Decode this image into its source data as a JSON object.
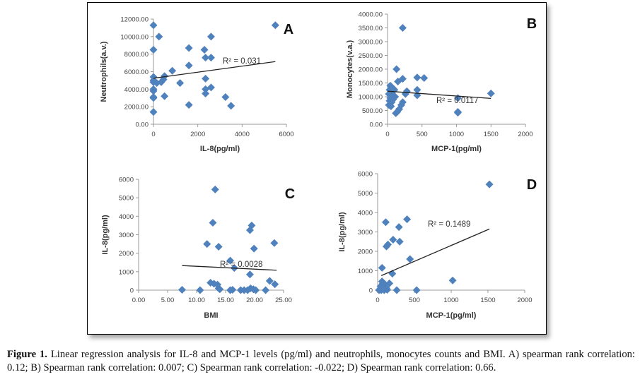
{
  "caption": {
    "label": "Figure 1.",
    "text": " Linear regression analysis for IL-8 and MCP-1 levels (pg/ml) and neutrophils, monocytes counts and BMI. A) spearman rank correlation: 0.12; B) Spearman rank correlation: 0.007; C) Spearman rank correlation: -0.022; D) Spearman rank correlation: 0.66."
  },
  "chart_data": [
    {
      "id": "A",
      "type": "scatter",
      "panel_label": "A",
      "xlabel": "IL-8(pg/ml)",
      "ylabel": "Neutrophils(a.v.)",
      "xlim": [
        0,
        6000
      ],
      "ylim": [
        0,
        12000
      ],
      "xticks": [
        "0",
        "2000",
        "4000",
        "6000"
      ],
      "yticks": [
        "0.00",
        "2000.00",
        "4000.00",
        "6000.00",
        "8000.00",
        "10000.00",
        "12000.00"
      ],
      "r2_label": "R² = 0.031",
      "trendline": {
        "x": [
          0,
          5500
        ],
        "y": [
          5250,
          7150
        ]
      },
      "points": [
        [
          0,
          11300
        ],
        [
          0,
          8500
        ],
        [
          0,
          5400
        ],
        [
          0,
          5000
        ],
        [
          0,
          4800
        ],
        [
          0,
          4000
        ],
        [
          0,
          3800
        ],
        [
          0,
          3100
        ],
        [
          0,
          3000
        ],
        [
          0,
          1400
        ],
        [
          250,
          10000
        ],
        [
          150,
          4700
        ],
        [
          350,
          4800
        ],
        [
          450,
          5100
        ],
        [
          500,
          5500
        ],
        [
          500,
          3200
        ],
        [
          850,
          6100
        ],
        [
          1200,
          4700
        ],
        [
          1600,
          8700
        ],
        [
          1600,
          6700
        ],
        [
          1600,
          2200
        ],
        [
          2300,
          8500
        ],
        [
          2350,
          7600
        ],
        [
          2350,
          5200
        ],
        [
          2350,
          4000
        ],
        [
          2350,
          3500
        ],
        [
          2600,
          10000
        ],
        [
          2600,
          7600
        ],
        [
          2600,
          4200
        ],
        [
          3250,
          3100
        ],
        [
          3500,
          2100
        ],
        [
          5500,
          11300
        ]
      ],
      "grid": false
    },
    {
      "id": "B",
      "type": "scatter",
      "panel_label": "B",
      "xlabel": "MCP-1(pg/ml)",
      "ylabel": "Monocytes(v.a.)",
      "xlim": [
        0,
        2000
      ],
      "ylim": [
        0,
        4000
      ],
      "xticks": [
        "0",
        "500",
        "1000",
        "1500",
        "2000"
      ],
      "yticks": [
        "0.00",
        "500.00",
        "1000.00",
        "1500.00",
        "2000.00",
        "2500.00",
        "3000.00",
        "3500.00",
        "4000.00"
      ],
      "r2_label": "R² = 0.0117",
      "trendline": {
        "x": [
          0,
          1500
        ],
        "y": [
          1200,
          940
        ]
      },
      "points": [
        [
          220,
          3500
        ],
        [
          130,
          2000
        ],
        [
          220,
          1650
        ],
        [
          150,
          1550
        ],
        [
          430,
          1700
        ],
        [
          530,
          1680
        ],
        [
          40,
          1400
        ],
        [
          60,
          1350
        ],
        [
          80,
          1300
        ],
        [
          30,
          1250
        ],
        [
          100,
          1250
        ],
        [
          50,
          1150
        ],
        [
          20,
          1100
        ],
        [
          70,
          1050
        ],
        [
          110,
          1000
        ],
        [
          40,
          950
        ],
        [
          80,
          900
        ],
        [
          30,
          850
        ],
        [
          60,
          800
        ],
        [
          20,
          700
        ],
        [
          50,
          650
        ],
        [
          220,
          800
        ],
        [
          200,
          700
        ],
        [
          170,
          550
        ],
        [
          140,
          450
        ],
        [
          120,
          400
        ],
        [
          280,
          1200
        ],
        [
          260,
          1100
        ],
        [
          430,
          1250
        ],
        [
          430,
          1050
        ],
        [
          1020,
          950
        ],
        [
          1020,
          450
        ],
        [
          1020,
          420
        ],
        [
          1500,
          1120
        ]
      ],
      "grid": false
    },
    {
      "id": "C",
      "type": "scatter",
      "panel_label": "C",
      "xlabel": "BMI",
      "ylabel": "IL-8(pg/ml)",
      "xlim": [
        0,
        25
      ],
      "ylim": [
        0,
        6000
      ],
      "xticks": [
        "0.00",
        "5.00",
        "10.00",
        "15.00",
        "20.00",
        "25.00"
      ],
      "yticks": [
        "0",
        "1000",
        "2000",
        "3000",
        "4000",
        "5000",
        "6000"
      ],
      "r2_label": "R² = 0.0028",
      "trendline": {
        "x": [
          7.5,
          23.8
        ],
        "y": [
          1330,
          1080
        ]
      },
      "points": [
        [
          13.2,
          5450
        ],
        [
          12.8,
          3650
        ],
        [
          19.5,
          3500
        ],
        [
          19.2,
          3250
        ],
        [
          11.8,
          2500
        ],
        [
          13.8,
          2350
        ],
        [
          23.4,
          2550
        ],
        [
          19.9,
          2250
        ],
        [
          15.8,
          1600
        ],
        [
          16.5,
          1200
        ],
        [
          19.2,
          850
        ],
        [
          12.4,
          400
        ],
        [
          13.0,
          350
        ],
        [
          13.6,
          300
        ],
        [
          13.8,
          100
        ],
        [
          14.0,
          50
        ],
        [
          22.6,
          500
        ],
        [
          23.5,
          320
        ],
        [
          7.5,
          20
        ],
        [
          10.6,
          0
        ],
        [
          15.8,
          0
        ],
        [
          16.2,
          20
        ],
        [
          17.6,
          0
        ],
        [
          18.2,
          0
        ],
        [
          18.8,
          0
        ],
        [
          19.3,
          100
        ],
        [
          19.8,
          50
        ],
        [
          20.2,
          0
        ],
        [
          21.9,
          0
        ]
      ],
      "grid": false
    },
    {
      "id": "D",
      "type": "scatter",
      "panel_label": "D",
      "xlabel": "MCP-1(pg/ml)",
      "ylabel": "IL-8(pg/ml)",
      "xlim": [
        0,
        2000
      ],
      "ylim": [
        0,
        6000
      ],
      "xticks": [
        "0",
        "500",
        "1000",
        "1500",
        "2000"
      ],
      "yticks": [
        "0",
        "1000",
        "2000",
        "3000",
        "4000",
        "5000",
        "6000"
      ],
      "r2_label": "R² = 0.1489",
      "trendline": {
        "x": [
          50,
          1520
        ],
        "y": [
          750,
          3150
        ]
      },
      "points": [
        [
          1520,
          5450
        ],
        [
          400,
          3650
        ],
        [
          110,
          3500
        ],
        [
          290,
          3250
        ],
        [
          210,
          2600
        ],
        [
          300,
          2500
        ],
        [
          140,
          2350
        ],
        [
          120,
          2250
        ],
        [
          440,
          1600
        ],
        [
          60,
          1150
        ],
        [
          200,
          850
        ],
        [
          1020,
          500
        ],
        [
          60,
          450
        ],
        [
          70,
          350
        ],
        [
          100,
          300
        ],
        [
          160,
          350
        ],
        [
          40,
          200
        ],
        [
          80,
          150
        ],
        [
          120,
          100
        ],
        [
          30,
          50
        ],
        [
          50,
          0
        ],
        [
          90,
          0
        ],
        [
          130,
          20
        ],
        [
          260,
          0
        ],
        [
          530,
          0
        ],
        [
          20,
          0
        ]
      ],
      "grid": false
    }
  ]
}
